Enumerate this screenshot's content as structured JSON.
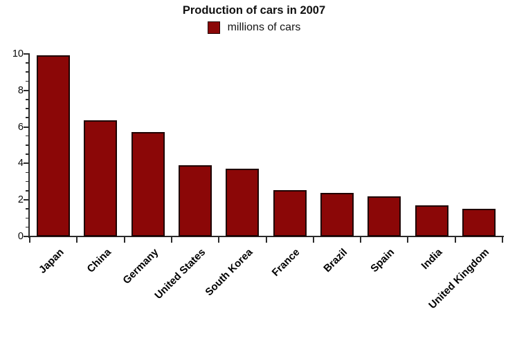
{
  "chart_data": {
    "type": "bar",
    "title": "Production of cars in 2007",
    "legend": {
      "label": "millions of cars",
      "position": "top-center"
    },
    "categories": [
      "Japan",
      "China",
      "Germany",
      "United States",
      "South Korea",
      "France",
      "Brazil",
      "Spain",
      "India",
      "United Kingdom"
    ],
    "values": [
      9.94,
      6.38,
      5.71,
      3.92,
      3.72,
      2.55,
      2.39,
      2.2,
      1.71,
      1.53
    ],
    "xlabel": "",
    "ylabel": "",
    "ylim": [
      0,
      10
    ],
    "yticks": [
      0,
      2,
      4,
      6,
      8,
      10
    ],
    "minor_tick_step": 0.5,
    "grid": false,
    "x_label_rotation_deg": 45,
    "colors": {
      "bar_fill": "#8B0707",
      "bar_edge": "#1e0202",
      "axis": "#2b2b2b",
      "text": "#000000"
    }
  }
}
